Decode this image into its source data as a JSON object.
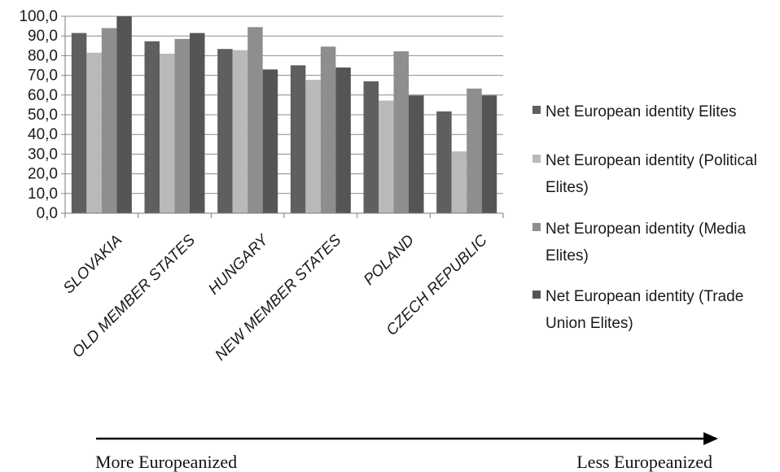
{
  "chart_data": {
    "type": "bar",
    "title": "",
    "xlabel": "",
    "ylabel": "",
    "ylim": [
      0,
      100
    ],
    "ytick_step": 10,
    "ytick_labels": [
      "0,0",
      "10,0",
      "20,0",
      "30,0",
      "40,0",
      "50,0",
      "60,0",
      "70,0",
      "80,0",
      "90,0",
      "100,0"
    ],
    "grid": true,
    "legend_position": "right",
    "categories": [
      "SLOVAKIA",
      "OLD MEMBER STATES",
      "HUNGARY",
      "NEW MEMBER STATES",
      "POLAND",
      "CZECH REPUBLIC"
    ],
    "series": [
      {
        "name": "Net European identity Elites",
        "values": [
          91.5,
          87.3,
          83.4,
          75.1,
          67.0,
          51.7
        ],
        "color": "#5f5f5f"
      },
      {
        "name": "Net European identity (Political Elites)",
        "values": [
          81.5,
          81.0,
          82.8,
          67.7,
          57.2,
          31.4
        ],
        "color": "#b9b9b9"
      },
      {
        "name": "Net European identity (Media Elites)",
        "values": [
          94.0,
          88.5,
          94.5,
          84.6,
          82.2,
          63.3
        ],
        "color": "#8e8e8e"
      },
      {
        "name": "Net European identity (Trade Union Elites)",
        "values": [
          100.0,
          91.5,
          73.0,
          74.0,
          59.8,
          59.8
        ],
        "color": "#555555"
      }
    ],
    "legend_lines": [
      [
        "Net European identity Elites"
      ],
      [
        "Net European identity (Political",
        "Elites)"
      ],
      [
        "Net European identity (Media",
        "Elites)"
      ],
      [
        "Net European identity (Trade",
        "Union Elites)"
      ]
    ]
  },
  "arrow": {
    "left_label": "More Europeanized",
    "right_label": "Less Europeanized"
  }
}
